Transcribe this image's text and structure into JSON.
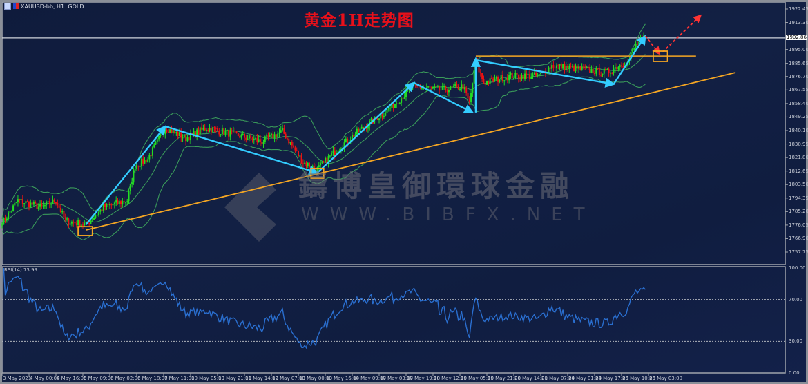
{
  "header": {
    "symbol_label": "XAUUSD-bb, H1:  GOLD"
  },
  "title": "黄金1H走势图",
  "watermark": {
    "cn": "鑄博皇御環球金融",
    "url": "WWW.BIBFX.NET"
  },
  "chart_data": [
    {
      "type": "candlestick",
      "title": "黄金1H走势图",
      "symbol": "XAUUSD-bb",
      "timeframe": "H1",
      "ylim": [
        1757.75,
        1922.45
      ],
      "yticks": [
        "1922.45",
        "1913.30",
        "1902.86",
        "1895.00",
        "1885.65",
        "1876.70",
        "1867.55",
        "1858.40",
        "1849.25",
        "1840.10",
        "1830.95",
        "1821.80",
        "1812.65",
        "1803.50",
        "1794.35",
        "1785.20",
        "1776.05",
        "1766.90",
        "1757.75"
      ],
      "current_price": 1902.86,
      "xticks": [
        "3 May 2021",
        "4 May 00:00",
        "4 May 16:00",
        "5 May 09:00",
        "6 May 02:00",
        "6 May 18:00",
        "7 May 11:00",
        "10 May 05:00",
        "10 May 21:00",
        "11 May 14:00",
        "12 May 07:00",
        "13 May 00:00",
        "13 May 16:00",
        "14 May 09:00",
        "17 May 03:00",
        "17 May 19:00",
        "18 May 12:00",
        "19 May 05:00",
        "19 May 21:00",
        "20 May 14:00",
        "21 May 07:00",
        "24 May 01:00",
        "24 May 17:00",
        "25 May 10:00",
        "26 May 03:00"
      ],
      "bars_per_xtick": 17,
      "close_path": [
        [
          1,
          1778.8
        ],
        [
          10,
          1792.8
        ],
        [
          25,
          1788.1
        ],
        [
          34,
          1792.8
        ],
        [
          40,
          1778.8
        ],
        [
          53,
          1776.4
        ],
        [
          64,
          1788.1
        ],
        [
          79,
          1792.8
        ],
        [
          84,
          1816.2
        ],
        [
          92,
          1820.9
        ],
        [
          103,
          1842.0
        ],
        [
          116,
          1834.9
        ],
        [
          129,
          1842.0
        ],
        [
          147,
          1837.3
        ],
        [
          164,
          1832.6
        ],
        [
          177,
          1839.6
        ],
        [
          190,
          1818.6
        ],
        [
          199,
          1813.9
        ],
        [
          212,
          1827.9
        ],
        [
          225,
          1839.6
        ],
        [
          243,
          1853.7
        ],
        [
          260,
          1870.0
        ],
        [
          278,
          1867.7
        ],
        [
          291,
          1870.0
        ],
        [
          295,
          1858.3
        ],
        [
          299,
          1886.4
        ],
        [
          304,
          1872.4
        ],
        [
          321,
          1877.1
        ],
        [
          339,
          1877.1
        ],
        [
          347,
          1884.1
        ],
        [
          365,
          1881.7
        ],
        [
          382,
          1879.4
        ],
        [
          389,
          1884.1
        ],
        [
          395,
          1886.4
        ],
        [
          400,
          1898.1
        ],
        [
          406,
          1902.8
        ]
      ],
      "indicators": {
        "bollinger": {
          "period": 20,
          "deviation": 2,
          "color": "#3a9a5a"
        },
        "rsi": {
          "label": "RSI(14) 73.99",
          "period": 14,
          "levels": [
            70,
            30
          ],
          "ylim": [
            0,
            100
          ],
          "yticks": [
            "100.00",
            "70.00",
            "30.00",
            "0.00"
          ],
          "color": "#2a6fd0"
        }
      },
      "colors": {
        "bull": "#22dd22",
        "bear": "#ee1111",
        "arrows": "#33ccff",
        "trend": "#f5a623",
        "projection": "#ff3333"
      },
      "annotations": {
        "arrows": [
          [
            [
              53,
              1776.4
            ],
            [
              103,
              1842.9
            ]
          ],
          [
            [
              103,
              1842.9
            ],
            [
              199,
              1811.5
            ]
          ],
          [
            [
              199,
              1811.5
            ],
            [
              260,
              1872.4
            ]
          ],
          [
            [
              260,
              1872.4
            ],
            [
              297,
              1852.3
            ]
          ],
          [
            [
              299,
              1852.3
            ],
            [
              299,
              1888.8
            ]
          ],
          [
            [
              299,
              1887.8
            ],
            [
              386,
              1871.5
            ]
          ],
          [
            [
              386,
              1871.5
            ],
            [
              406,
              1904.2
            ]
          ]
        ],
        "projection_arrows": [
          [
            [
              406,
              1904.2
            ],
            [
              415,
              1892.0
            ]
          ],
          [
            [
              417,
              1893.4
            ],
            [
              441,
              1918.2
            ]
          ]
        ],
        "trendline": [
          [
            53,
            1772.7
          ],
          [
            463,
            1879.4
          ]
        ],
        "resistance": {
          "price": 1890.6,
          "from": 299,
          "to": 438
        },
        "boxes": [
          [
            48,
            57,
            1775.0,
            1769.0
          ],
          [
            195,
            203,
            1814.4,
            1807.8
          ],
          [
            411,
            420,
            1893.9,
            1886.9
          ]
        ]
      }
    }
  ]
}
